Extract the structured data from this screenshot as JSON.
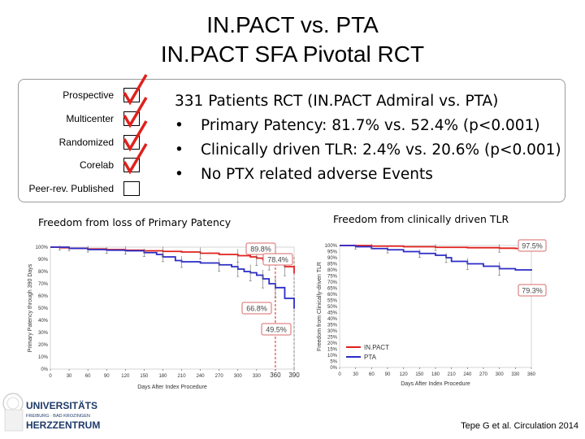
{
  "title": {
    "line1": "IN.PACT vs. PTA",
    "line2": "IN.PACT SFA Pivotal RCT"
  },
  "criteria": [
    {
      "label": "Prospective",
      "checked": true
    },
    {
      "label": "Multicenter",
      "checked": true
    },
    {
      "label": "Randomized",
      "checked": true
    },
    {
      "label": "Corelab",
      "checked": true
    },
    {
      "label": "Peer-rev. Published",
      "checked": false
    }
  ],
  "summary": {
    "heading": "331 Patients RCT (IN.PACT Admiral vs. PTA)",
    "bullets": [
      "Primary Patency: 81.7% vs. 52.4% (p<0.001)",
      "Clinically driven TLR: 2.4% vs. 20.6% (p<0.001)",
      "No PTX related adverse Events"
    ]
  },
  "colors": {
    "inpact": "#e0201c",
    "pta": "#2b2bc8",
    "callout_border": "#d86a6a",
    "grey": "#777777"
  },
  "chart_data": [
    {
      "type": "line",
      "title": "Freedom from loss of Primary Patency",
      "xlabel": "Days After Index Procedure",
      "ylabel": "Primary Patency through 390 Days",
      "xlim": [
        0,
        390
      ],
      "ylim": [
        0,
        100
      ],
      "xticks": [
        0,
        30,
        60,
        90,
        120,
        150,
        180,
        210,
        240,
        270,
        300,
        330,
        360,
        390
      ],
      "yticks": [
        "0%",
        "10%",
        "20%",
        "30%",
        "40%",
        "50%",
        "60%",
        "70%",
        "80%",
        "90%",
        "100%"
      ],
      "xtick_highlight": [
        "360",
        "390"
      ],
      "series": [
        {
          "name": "IN.PACT",
          "color": "#e0201c",
          "x": [
            0,
            15,
            30,
            60,
            90,
            120,
            150,
            180,
            210,
            240,
            270,
            300,
            320,
            330,
            340,
            350,
            360,
            375,
            390
          ],
          "y": [
            100,
            99.5,
            99,
            98.5,
            98,
            97.5,
            97,
            96.5,
            96,
            95,
            94,
            93,
            92,
            91,
            89.8,
            88,
            87,
            84,
            78.4
          ]
        },
        {
          "name": "PTA",
          "color": "#2b2bc8",
          "x": [
            0,
            30,
            60,
            90,
            120,
            150,
            170,
            180,
            200,
            210,
            240,
            270,
            290,
            300,
            310,
            320,
            330,
            340,
            350,
            360,
            375,
            390
          ],
          "y": [
            100,
            99,
            98,
            97.5,
            97,
            95.5,
            94,
            92,
            89,
            88,
            87,
            85.5,
            84,
            82,
            80,
            79,
            77,
            74,
            70,
            66.8,
            58,
            49.5
          ]
        }
      ],
      "annotations": [
        "89.8%",
        "78.4%",
        "66.8%",
        "49.5%"
      ]
    },
    {
      "type": "line",
      "title": "Freedom from clinically driven TLR",
      "xlabel": "Days After Index Procedure",
      "ylabel": "Freedom from Clinically-driven TLR",
      "xlim": [
        0,
        360
      ],
      "ylim": [
        0,
        100
      ],
      "xticks": [
        0,
        30,
        60,
        90,
        120,
        150,
        180,
        210,
        240,
        270,
        300,
        330,
        360
      ],
      "yticks": [
        "0%",
        "5%",
        "10%",
        "15%",
        "20%",
        "25%",
        "30%",
        "35%",
        "40%",
        "45%",
        "50%",
        "55%",
        "60%",
        "65%",
        "70%",
        "75%",
        "80%",
        "85%",
        "90%",
        "95%",
        "100%"
      ],
      "series": [
        {
          "name": "IN.PACT",
          "color": "#e0201c",
          "x": [
            0,
            60,
            120,
            180,
            240,
            300,
            330,
            360
          ],
          "y": [
            100,
            99.5,
            99,
            98.5,
            98.2,
            97.8,
            97.6,
            97.5
          ]
        },
        {
          "name": "PTA",
          "color": "#2b2bc8",
          "x": [
            0,
            30,
            60,
            90,
            120,
            150,
            180,
            200,
            210,
            240,
            270,
            300,
            330,
            360
          ],
          "y": [
            100,
            99,
            97.5,
            96.5,
            95,
            93.5,
            92,
            90,
            87,
            85,
            83,
            81,
            80,
            79.3
          ]
        }
      ],
      "annotations": [
        "97.5%",
        "79.3%"
      ],
      "legend": [
        "IN.PACT",
        "PTA"
      ]
    }
  ],
  "citation": "Tepe G et al. Circulation 2014",
  "logo": {
    "line1": "UNIVERSITÄTS",
    "line2": "FREIBURG · BAD KROZINGEN",
    "line3": "HERZZENTRUM"
  }
}
